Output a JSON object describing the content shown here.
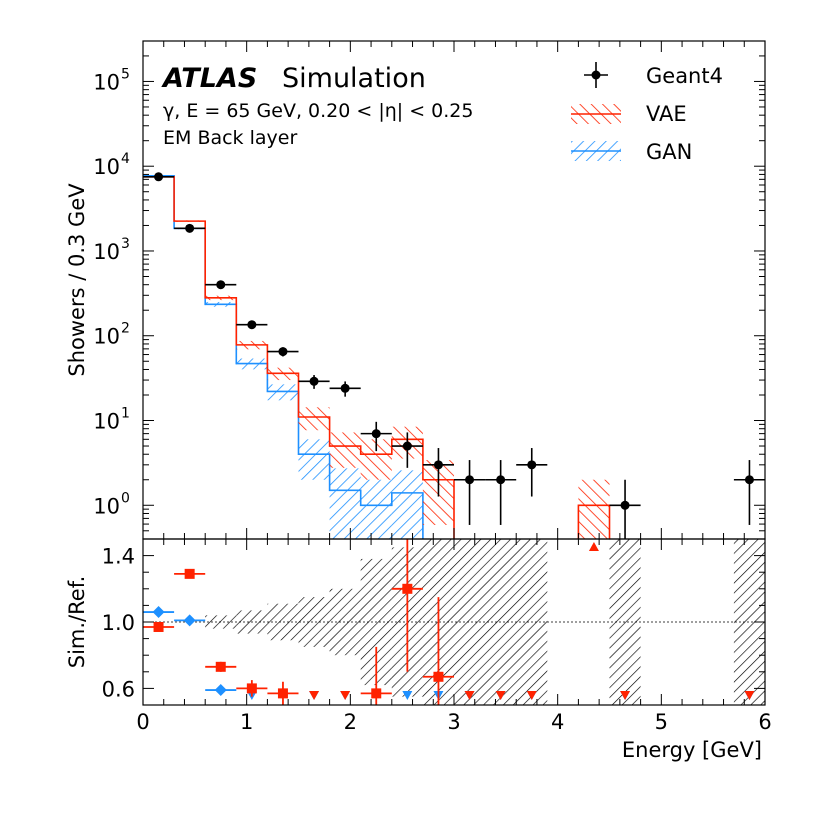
{
  "chart_data": {
    "type": "histogram",
    "title": "ATLAS Simulation",
    "annotations": {
      "experiment": "ATLAS",
      "label": "Simulation",
      "line1": "γ, E = 65 GeV, 0.20 < |η| < 0.25",
      "line2": "EM Back layer"
    },
    "xlabel": "Energy [GeV]",
    "ylabel": "Showers / 0.3 GeV",
    "ratio_ylabel": "Sim./Ref.",
    "xlim": [
      0,
      6
    ],
    "xticks": [
      0,
      1,
      2,
      3,
      4,
      5,
      6
    ],
    "xtick_labels": [
      "0",
      "1",
      "2",
      "3",
      "4",
      "5",
      "6"
    ],
    "ylim": [
      0.4,
      300000
    ],
    "yscale": "log",
    "yticks": [
      1,
      10,
      100,
      1000,
      10000,
      100000
    ],
    "ytick_labels": [
      "10",
      "10",
      "10",
      "10",
      "10",
      "10"
    ],
    "ytick_exponents": [
      "0",
      "1",
      "2",
      "3",
      "4",
      "5"
    ],
    "ratio_ylim": [
      0.5,
      1.5
    ],
    "ratio_yticks": [
      0.6,
      1.0,
      1.4
    ],
    "ratio_ytick_labels": [
      "0.6",
      "1.0",
      "1.4"
    ],
    "bin_edges": [
      0,
      0.3,
      0.6,
      0.9,
      1.2,
      1.5,
      1.8,
      2.1,
      2.4,
      2.7,
      3.0,
      3.3,
      3.6,
      3.9,
      4.2,
      4.5,
      4.8,
      5.1,
      5.4,
      5.7,
      6.0
    ],
    "legend_position": "top-right",
    "series": [
      {
        "name": "Geant4",
        "style": "points",
        "color": "#000000",
        "x": [
          0.15,
          0.45,
          0.75,
          1.05,
          1.35,
          1.65,
          1.95,
          2.25,
          2.55,
          2.85,
          3.15,
          3.45,
          3.75,
          4.65,
          5.85
        ],
        "values": [
          7500,
          1850,
          400,
          135,
          65,
          29,
          24,
          7,
          5,
          3,
          2,
          2,
          3,
          1,
          2
        ]
      },
      {
        "name": "VAE",
        "style": "hatched-step",
        "color": "#ff2200",
        "values": [
          7500,
          2250,
          280,
          78,
          36,
          11,
          5,
          4,
          6,
          2,
          0,
          0,
          0,
          0,
          1,
          0,
          0,
          0,
          0,
          0
        ]
      },
      {
        "name": "GAN",
        "style": "hatched-step",
        "color": "#1e90ff",
        "values": [
          7700,
          1850,
          235,
          47,
          22,
          4,
          1.5,
          1,
          1.4,
          0,
          0,
          0,
          0,
          0,
          0,
          0,
          0,
          0,
          0,
          0
        ]
      }
    ],
    "ratio": {
      "reference_band_bins": [
        {
          "x0": 0.6,
          "x1": 0.9,
          "lo": 0.96,
          "hi": 1.04
        },
        {
          "x0": 0.9,
          "x1": 1.2,
          "lo": 0.93,
          "hi": 1.07
        },
        {
          "x0": 1.2,
          "x1": 1.5,
          "lo": 0.89,
          "hi": 1.11
        },
        {
          "x0": 1.5,
          "x1": 1.8,
          "lo": 0.85,
          "hi": 1.15
        },
        {
          "x0": 1.8,
          "x1": 2.1,
          "lo": 0.8,
          "hi": 1.2
        },
        {
          "x0": 2.1,
          "x1": 2.4,
          "lo": 0.62,
          "hi": 1.38
        },
        {
          "x0": 2.4,
          "x1": 2.7,
          "lo": 0.55,
          "hi": 1.45
        },
        {
          "x0": 2.7,
          "x1": 3.9,
          "lo": 0.5,
          "hi": 1.5
        },
        {
          "x0": 4.5,
          "x1": 4.8,
          "lo": 0.5,
          "hi": 1.5
        },
        {
          "x0": 5.7,
          "x1": 6.0,
          "lo": 0.5,
          "hi": 1.5
        }
      ],
      "vae_points": [
        {
          "x": 0.15,
          "y": 0.97,
          "err": 0.02
        },
        {
          "x": 0.45,
          "y": 1.29,
          "err": 0.0
        },
        {
          "x": 0.75,
          "y": 0.73,
          "err": 0.03
        },
        {
          "x": 1.05,
          "y": 0.6,
          "err": 0.05
        },
        {
          "x": 1.35,
          "y": 0.57,
          "err": 0.07
        },
        {
          "x": 2.25,
          "y": 0.57,
          "err": 0.28
        },
        {
          "x": 2.55,
          "y": 1.2,
          "err": 0.5
        },
        {
          "x": 2.85,
          "y": 0.67,
          "err": 0.48
        }
      ],
      "gan_points": [
        {
          "x": 0.15,
          "y": 1.06
        },
        {
          "x": 0.45,
          "y": 1.01
        },
        {
          "x": 0.75,
          "y": 0.59
        }
      ],
      "vae_offscale_up_x": [
        4.35
      ],
      "vae_offscale_down_x": [
        1.65,
        1.95,
        3.15,
        3.45,
        3.75,
        4.65,
        5.85
      ],
      "gan_offscale_down_x": [
        1.05,
        1.65,
        1.95,
        2.55,
        2.85,
        3.15,
        3.45,
        3.75,
        4.65,
        5.85
      ]
    }
  }
}
